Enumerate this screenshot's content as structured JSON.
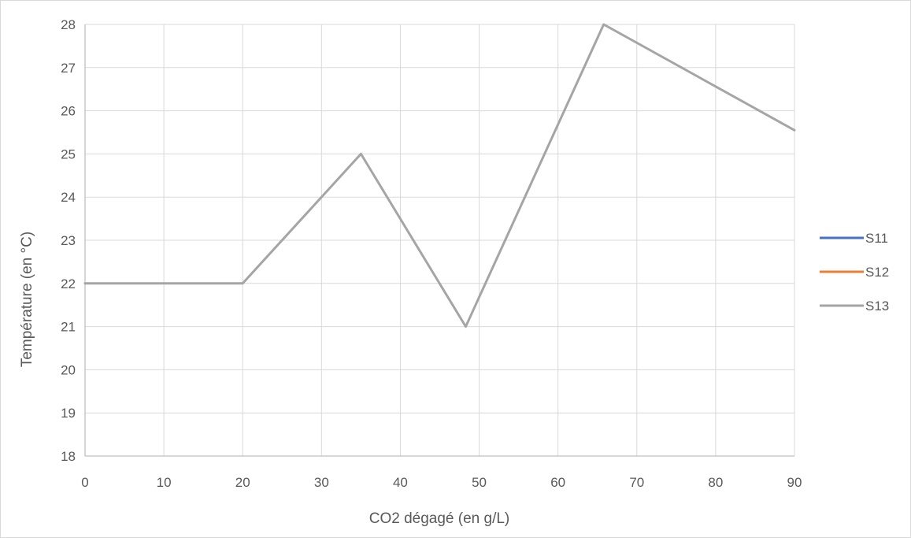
{
  "chart_data": {
    "type": "line",
    "title": "",
    "xlabel": "CO2 dégagé (en g/L)",
    "ylabel": "Température (en °C)",
    "xlim": [
      0,
      90
    ],
    "ylim": [
      18,
      28
    ],
    "x_ticks": [
      0,
      10,
      20,
      30,
      40,
      50,
      60,
      70,
      80,
      90
    ],
    "y_ticks": [
      18,
      19,
      20,
      21,
      22,
      23,
      24,
      25,
      26,
      27,
      28
    ],
    "grid": true,
    "legend_position": "right",
    "series": [
      {
        "name": "S11",
        "color": "#4472C4",
        "x": [],
        "y": []
      },
      {
        "name": "S12",
        "color": "#ED7D31",
        "x": [],
        "y": []
      },
      {
        "name": "S13",
        "color": "#A5A5A5",
        "x": [
          0,
          20,
          35,
          48.3,
          65.8,
          90
        ],
        "y": [
          22,
          22,
          25,
          21,
          28,
          25.55
        ]
      }
    ]
  }
}
